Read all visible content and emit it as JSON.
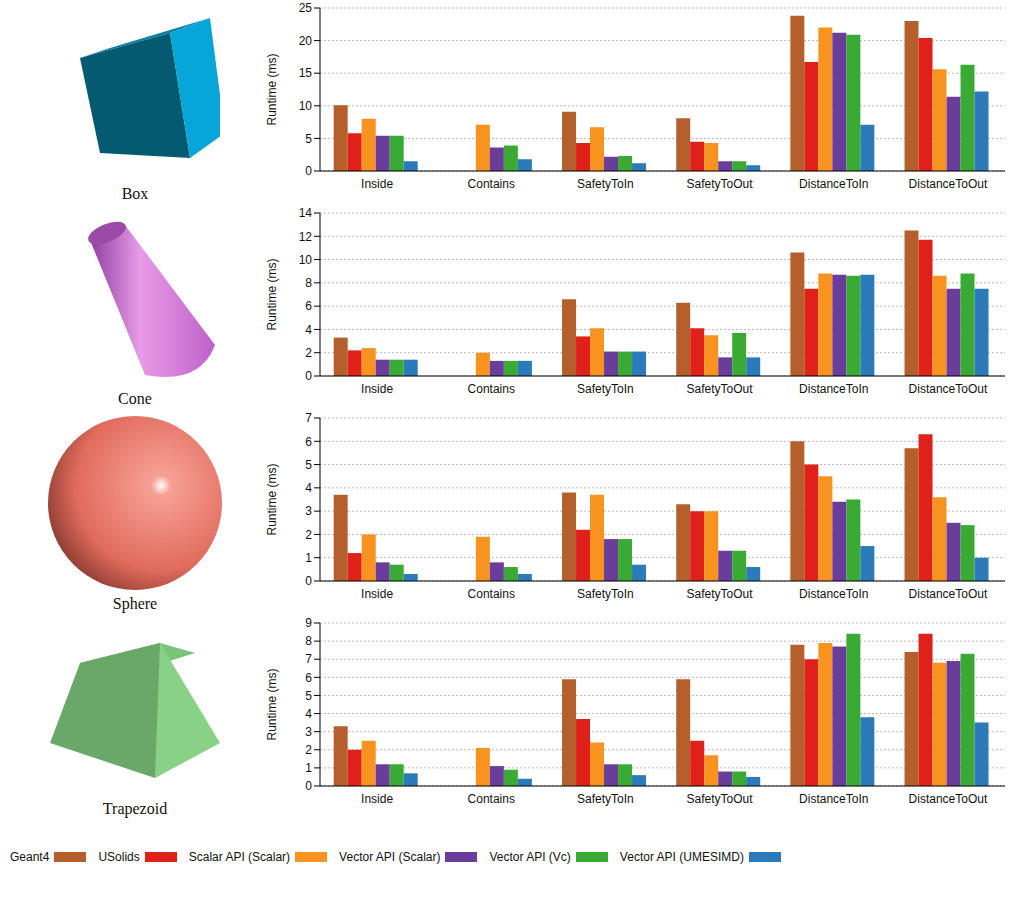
{
  "chart_data": [
    {
      "type": "bar",
      "title": "Box",
      "y_label": "Runtime (ms)",
      "categories": [
        "Inside",
        "Contains",
        "SafetyToIn",
        "SafetyToOut",
        "DistanceToIn",
        "DistanceToOut"
      ],
      "ylim": [
        0,
        25
      ],
      "yticks": [
        0,
        5,
        10,
        15,
        20,
        25
      ],
      "grid": true,
      "legend": "bottom",
      "series": [
        {
          "name": "Geant4",
          "color": "#b5602c",
          "values": [
            10.1,
            null,
            9.1,
            8.1,
            23.8,
            23.0
          ]
        },
        {
          "name": "USolids",
          "color": "#e0201b",
          "values": [
            5.8,
            null,
            4.3,
            4.5,
            16.7,
            20.4
          ]
        },
        {
          "name": "Scalar API (Scalar)",
          "color": "#f7931e",
          "values": [
            8.0,
            7.1,
            6.7,
            4.3,
            22.0,
            15.6
          ]
        },
        {
          "name": "Vector API (Scalar)",
          "color": "#6a3d9a",
          "values": [
            5.4,
            3.6,
            2.2,
            1.5,
            21.2,
            11.4
          ]
        },
        {
          "name": "Vector API (Vc)",
          "color": "#3aaa35",
          "values": [
            5.4,
            3.9,
            2.3,
            1.5,
            20.9,
            16.3
          ]
        },
        {
          "name": "Vector API (UMESIMD)",
          "color": "#2b7bba",
          "values": [
            1.5,
            1.8,
            1.2,
            0.9,
            7.1,
            12.2
          ]
        }
      ]
    },
    {
      "type": "bar",
      "title": "Cone",
      "y_label": "Runtime (ms)",
      "categories": [
        "Inside",
        "Contains",
        "SafetyToIn",
        "SafetyToOut",
        "DistanceToIn",
        "DistanceToOut"
      ],
      "ylim": [
        0,
        14
      ],
      "yticks": [
        0,
        2,
        4,
        6,
        8,
        10,
        12,
        14
      ],
      "grid": true,
      "legend": "bottom",
      "series": [
        {
          "name": "Geant4",
          "color": "#b5602c",
          "values": [
            3.3,
            null,
            6.6,
            6.3,
            10.6,
            12.5
          ]
        },
        {
          "name": "USolids",
          "color": "#e0201b",
          "values": [
            2.2,
            null,
            3.4,
            4.1,
            7.5,
            11.7
          ]
        },
        {
          "name": "Scalar API (Scalar)",
          "color": "#f7931e",
          "values": [
            2.4,
            2.0,
            4.1,
            3.5,
            8.8,
            8.6
          ]
        },
        {
          "name": "Vector API (Scalar)",
          "color": "#6a3d9a",
          "values": [
            1.4,
            1.3,
            2.1,
            1.6,
            8.7,
            7.5
          ]
        },
        {
          "name": "Vector API (Vc)",
          "color": "#3aaa35",
          "values": [
            1.4,
            1.3,
            2.1,
            3.7,
            8.6,
            8.8
          ]
        },
        {
          "name": "Vector API (UMESIMD)",
          "color": "#2b7bba",
          "values": [
            1.4,
            1.3,
            2.1,
            1.6,
            8.7,
            7.5
          ]
        }
      ]
    },
    {
      "type": "bar",
      "title": "Sphere",
      "y_label": "Runtime (ms)",
      "categories": [
        "Inside",
        "Contains",
        "SafetyToIn",
        "SafetyToOut",
        "DistanceToIn",
        "DistanceToOut"
      ],
      "ylim": [
        0,
        7
      ],
      "yticks": [
        0,
        1,
        2,
        3,
        4,
        5,
        6,
        7
      ],
      "grid": true,
      "legend": "bottom",
      "series": [
        {
          "name": "Geant4",
          "color": "#b5602c",
          "values": [
            3.7,
            null,
            3.8,
            3.3,
            6.0,
            5.7
          ]
        },
        {
          "name": "USolids",
          "color": "#e0201b",
          "values": [
            1.2,
            null,
            2.2,
            3.0,
            5.0,
            6.3
          ]
        },
        {
          "name": "Scalar API (Scalar)",
          "color": "#f7931e",
          "values": [
            2.0,
            1.9,
            3.7,
            3.0,
            4.5,
            3.6
          ]
        },
        {
          "name": "Vector API (Scalar)",
          "color": "#6a3d9a",
          "values": [
            0.8,
            0.8,
            1.8,
            1.3,
            3.4,
            2.5
          ]
        },
        {
          "name": "Vector API (Vc)",
          "color": "#3aaa35",
          "values": [
            0.7,
            0.6,
            1.8,
            1.3,
            3.5,
            2.4
          ]
        },
        {
          "name": "Vector API (UMESIMD)",
          "color": "#2b7bba",
          "values": [
            0.3,
            0.3,
            0.7,
            0.6,
            1.5,
            1.0
          ]
        }
      ]
    },
    {
      "type": "bar",
      "title": "Trapezoid",
      "y_label": "Runtime (ms)",
      "categories": [
        "Inside",
        "Contains",
        "SafetyToIn",
        "SafetyToOut",
        "DistanceToIn",
        "DistanceToOut"
      ],
      "ylim": [
        0,
        9
      ],
      "yticks": [
        0,
        1,
        2,
        3,
        4,
        5,
        6,
        7,
        8,
        9
      ],
      "grid": true,
      "legend": "bottom",
      "series": [
        {
          "name": "Geant4",
          "color": "#b5602c",
          "values": [
            3.3,
            null,
            5.9,
            5.9,
            7.8,
            7.4
          ]
        },
        {
          "name": "USolids",
          "color": "#e0201b",
          "values": [
            2.0,
            null,
            3.7,
            2.5,
            7.0,
            8.4
          ]
        },
        {
          "name": "Scalar API (Scalar)",
          "color": "#f7931e",
          "values": [
            2.5,
            2.1,
            2.4,
            1.7,
            7.9,
            6.8
          ]
        },
        {
          "name": "Vector API (Scalar)",
          "color": "#6a3d9a",
          "values": [
            1.2,
            1.1,
            1.2,
            0.8,
            7.7,
            6.9
          ]
        },
        {
          "name": "Vector API (Vc)",
          "color": "#3aaa35",
          "values": [
            1.2,
            0.9,
            1.2,
            0.8,
            8.4,
            7.3
          ]
        },
        {
          "name": "Vector API (UMESIMD)",
          "color": "#2b7bba",
          "values": [
            0.7,
            0.4,
            0.6,
            0.5,
            3.8,
            3.5
          ]
        }
      ]
    }
  ]
}
